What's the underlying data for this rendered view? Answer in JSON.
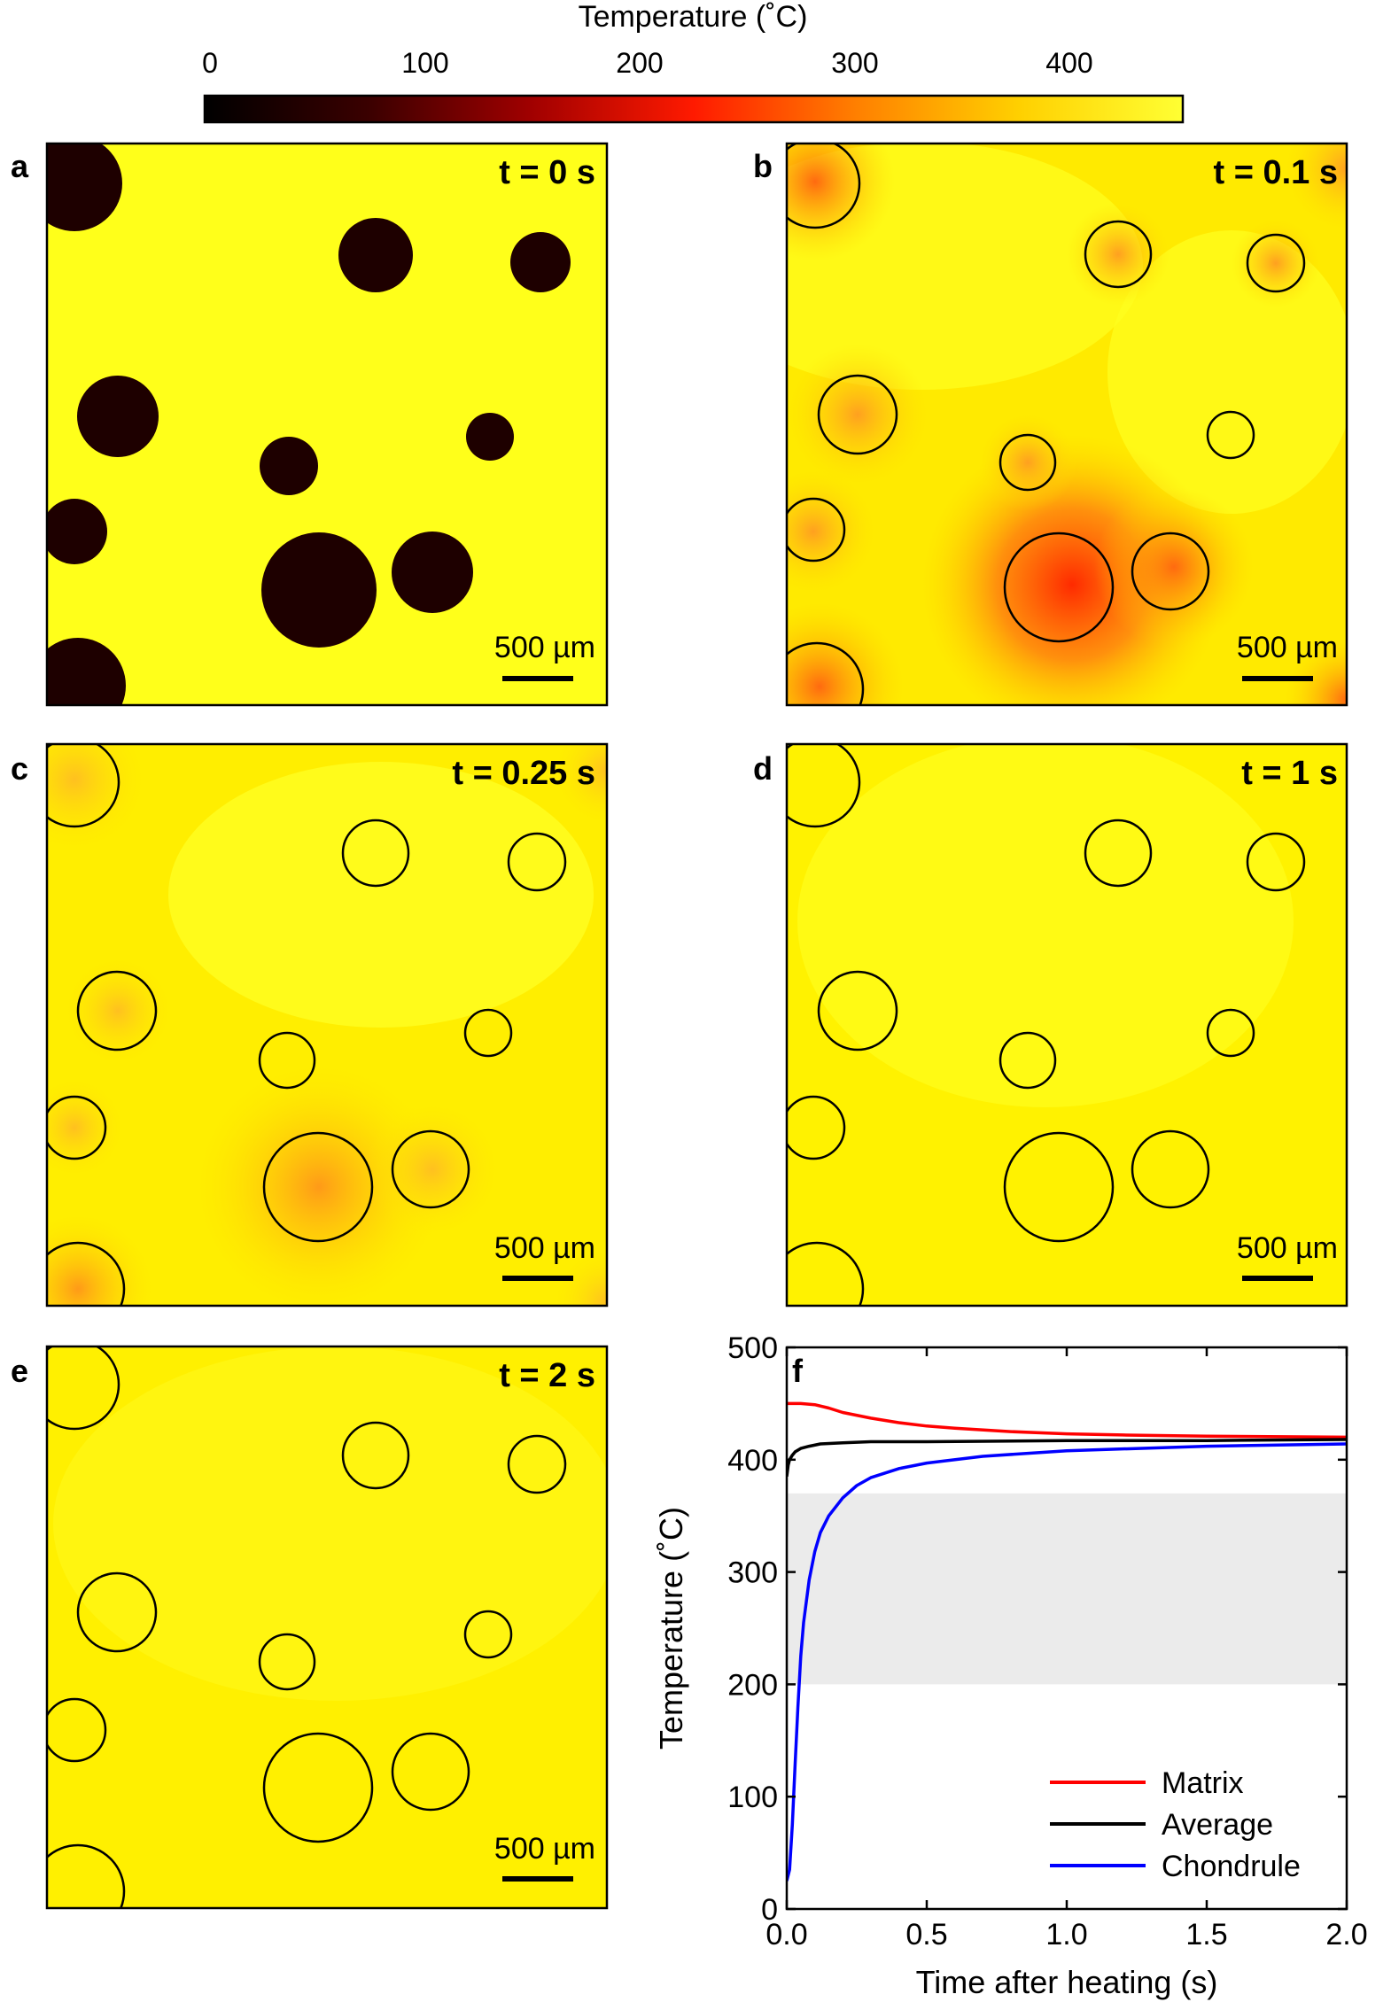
{
  "colorbar": {
    "title": "Temperature (˚C)",
    "ticks": [
      "0",
      "100",
      "200",
      "300",
      "400"
    ],
    "range": [
      0,
      450
    ],
    "colors": [
      "#000000",
      "#3a0000",
      "#a00000",
      "#ff1a00",
      "#ff8000",
      "#ffd000",
      "#ffff33"
    ]
  },
  "scale_bar_label": "500 µm",
  "panels": [
    {
      "letter": "a",
      "time_label": "t = 0 s"
    },
    {
      "letter": "b",
      "time_label": "t = 0.1 s"
    },
    {
      "letter": "c",
      "time_label": "t = 0.25 s"
    },
    {
      "letter": "d",
      "time_label": "t = 1 s"
    },
    {
      "letter": "e",
      "time_label": "t = 2 s"
    }
  ],
  "chart_data": {
    "type": "line",
    "panel_letter": "f",
    "xlabel": "Time after heating (s)",
    "ylabel": "Temperature (˚C)",
    "xlim": [
      0,
      2
    ],
    "ylim": [
      0,
      500
    ],
    "x_ticks": [
      "0.0",
      "0.5",
      "1.0",
      "1.5",
      "2.0"
    ],
    "y_ticks": [
      "0",
      "100",
      "200",
      "300",
      "400",
      "500"
    ],
    "shaded_band": [
      200,
      370
    ],
    "legend_position": "bottom-right",
    "series": [
      {
        "name": "Matrix",
        "color": "#ff0000",
        "x": [
          0,
          0.05,
          0.1,
          0.15,
          0.2,
          0.3,
          0.4,
          0.5,
          0.6,
          0.8,
          1.0,
          1.2,
          1.5,
          2.0
        ],
        "y": [
          450,
          450,
          449,
          446,
          442,
          437,
          433,
          430,
          428,
          425,
          423,
          422,
          421,
          420
        ]
      },
      {
        "name": "Average",
        "color": "#000000",
        "x": [
          0,
          0.005,
          0.01,
          0.02,
          0.03,
          0.05,
          0.08,
          0.12,
          0.2,
          0.3,
          0.5,
          1.0,
          1.5,
          2.0
        ],
        "y": [
          385,
          395,
          400,
          404,
          407,
          410,
          412,
          414,
          415,
          416,
          416,
          417,
          417,
          418
        ]
      },
      {
        "name": "Chondrule",
        "color": "#0000ff",
        "x": [
          0,
          0.01,
          0.02,
          0.03,
          0.04,
          0.05,
          0.06,
          0.08,
          0.1,
          0.12,
          0.15,
          0.2,
          0.25,
          0.3,
          0.4,
          0.5,
          0.7,
          1.0,
          1.5,
          2.0
        ],
        "y": [
          25,
          35,
          75,
          130,
          180,
          225,
          255,
          293,
          318,
          335,
          350,
          366,
          377,
          384,
          392,
          397,
          403,
          408,
          412,
          414
        ]
      }
    ]
  }
}
